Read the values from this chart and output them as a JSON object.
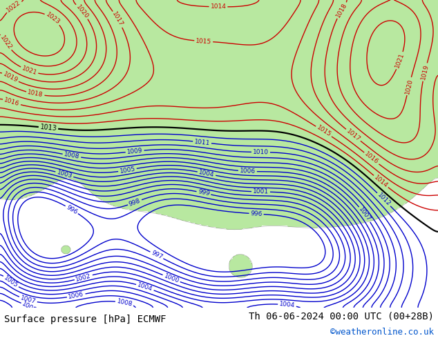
{
  "title_left": "Surface pressure [hPa] ECMWF",
  "title_right": "Th 06-06-2024 00:00 UTC (00+28B)",
  "credit": "©weatheronline.co.uk",
  "sea_color": "#e8e8e8",
  "land_color": "#b8e8a0",
  "contour_color_black": "#000000",
  "contour_color_red": "#cc0000",
  "contour_color_blue": "#0000cc",
  "contour_color_gray": "#808080",
  "title_fontsize": 10,
  "credit_fontsize": 9,
  "figsize": [
    6.34,
    4.9
  ],
  "dpi": 100
}
